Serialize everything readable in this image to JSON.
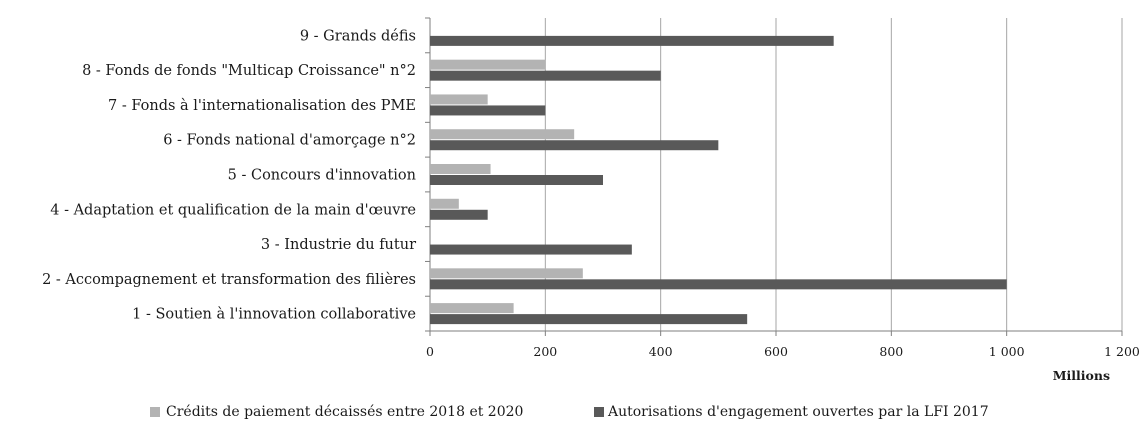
{
  "chart_data": {
    "type": "bar",
    "orientation": "horizontal",
    "categories": [
      "1 - Soutien à l'innovation collaborative",
      "2 - Accompagnement et transformation des filières",
      "3 - Industrie du futur",
      "4 - Adaptation et qualification de la main d'œuvre",
      "5 - Concours d'innovation",
      "6 - Fonds national d'amorçage n°2",
      "7 - Fonds à l'internationalisation des PME",
      "8 - Fonds de fonds \"Multicap Croissance\" n°2",
      "9 - Grands défis"
    ],
    "series": [
      {
        "name": "Crédits de paiement décaissés entre 2018 et 2020",
        "color": "#b3b3b3",
        "values": [
          145,
          265,
          0,
          50,
          105,
          250,
          100,
          200,
          0
        ]
      },
      {
        "name": "Autorisations d'engagement ouvertes par la LFI 2017",
        "color": "#595959",
        "values": [
          550,
          1000,
          350,
          100,
          300,
          500,
          200,
          400,
          700
        ]
      }
    ],
    "xlim": [
      0,
      1200
    ],
    "xticks": [
      0,
      200,
      400,
      600,
      800,
      1000,
      1200
    ],
    "xtick_labels": [
      "0",
      "200",
      "400",
      "600",
      "800",
      "1 000",
      "1 200"
    ],
    "xlabel": "Millions",
    "title": "",
    "grid": "vertical",
    "legend_position": "bottom"
  }
}
